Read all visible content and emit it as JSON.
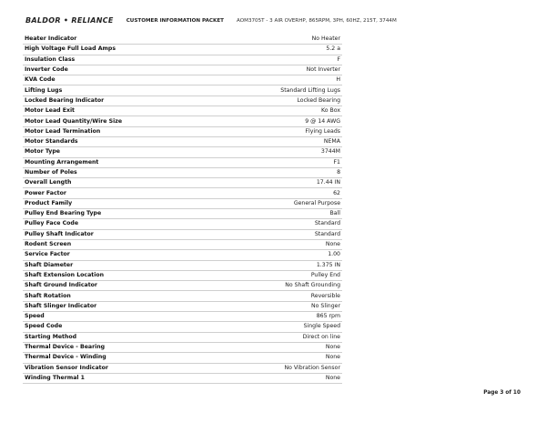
{
  "header": {
    "logo": "BALDOR • RELIANCE",
    "packet": "CUSTOMER INFORMATION PACKET",
    "model": "AOM3705T - 3 AIR OVERHP, 865RPM, 3PH, 60HZ, 215T, 3744M"
  },
  "rows": [
    [
      "Heater Indicator",
      "No Heater"
    ],
    [
      "High Voltage Full Load Amps",
      "5.2 a"
    ],
    [
      "Insulation Class",
      "F"
    ],
    [
      "Inverter Code",
      "Not Inverter"
    ],
    [
      "KVA Code",
      "H"
    ],
    [
      "Lifting Lugs",
      "Standard Lifting Lugs"
    ],
    [
      "Locked Bearing Indicator",
      "Locked Bearing"
    ],
    [
      "Motor Lead Exit",
      "Ko Box"
    ],
    [
      "Motor Lead Quantity/Wire Size",
      "9 @ 14 AWG"
    ],
    [
      "Motor Lead Termination",
      "Flying Leads"
    ],
    [
      "Motor Standards",
      "NEMA"
    ],
    [
      "Motor Type",
      "3744M"
    ],
    [
      "Mounting Arrangement",
      "F1"
    ],
    [
      "Number of Poles",
      "8"
    ],
    [
      "Overall Length",
      "17.44 IN"
    ],
    [
      "Power Factor",
      "62"
    ],
    [
      "Product Family",
      "General Purpose"
    ],
    [
      "Pulley End Bearing Type",
      "Ball"
    ],
    [
      "Pulley Face Code",
      "Standard"
    ],
    [
      "Pulley Shaft Indicator",
      "Standard"
    ],
    [
      "Rodent Screen",
      "None"
    ],
    [
      "Service Factor",
      "1.00"
    ],
    [
      "Shaft Diameter",
      "1.375 IN"
    ],
    [
      "Shaft Extension Location",
      "Pulley End"
    ],
    [
      "Shaft Ground Indicator",
      "No Shaft Grounding"
    ],
    [
      "Shaft Rotation",
      "Reversible"
    ],
    [
      "Shaft Slinger Indicator",
      "No Slinger"
    ],
    [
      "Speed",
      "865 rpm"
    ],
    [
      "Speed Code",
      "Single Speed"
    ],
    [
      "Starting Method",
      "Direct on line"
    ],
    [
      "Thermal Device - Bearing",
      "None"
    ],
    [
      "Thermal Device - Winding",
      "None"
    ],
    [
      "Vibration Sensor Indicator",
      "No Vibration Sensor"
    ],
    [
      "Winding Thermal 1",
      "None"
    ]
  ],
  "footer": {
    "page": "Page 3 of 10"
  }
}
